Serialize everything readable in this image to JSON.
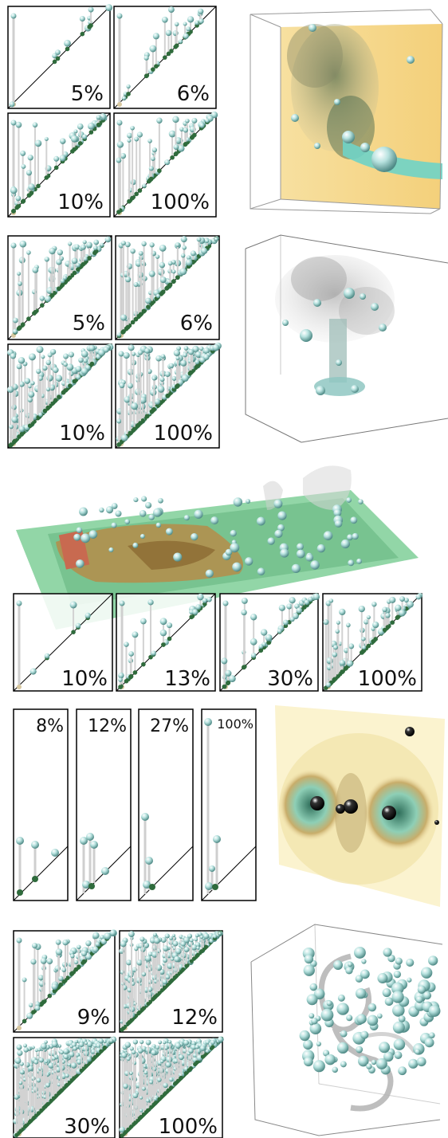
{
  "colors": {
    "sphere": "#a9d6d4",
    "sphere_dark": "#5f8f8c",
    "stem": "#d9d9d9",
    "base": "#2f6b3c",
    "yellow": "#f6dc92",
    "green_plane": "#7cc99a",
    "terrain": "#b08c4a"
  },
  "rows": [
    {
      "diagrams": [
        {
          "label": "5%"
        },
        {
          "label": "6%"
        },
        {
          "label": "10%"
        },
        {
          "label": "100%"
        }
      ],
      "render": {
        "icon": "smoke-plume-volume-render"
      }
    },
    {
      "diagrams": [
        {
          "label": "5%"
        },
        {
          "label": "6%"
        },
        {
          "label": "10%"
        },
        {
          "label": "100%"
        }
      ],
      "render": {
        "icon": "mushroom-cloud-volume-render"
      }
    },
    {
      "diagrams": [
        {
          "label": "10%"
        },
        {
          "label": "13%"
        },
        {
          "label": "30%"
        },
        {
          "label": "100%"
        }
      ],
      "render": {
        "icon": "terrain-flow-render"
      }
    },
    {
      "diagrams": [
        {
          "label": "8%"
        },
        {
          "label": "12%"
        },
        {
          "label": "27%"
        },
        {
          "label": "100%"
        }
      ],
      "render": {
        "icon": "orbital-field-render"
      }
    },
    {
      "diagrams": [
        {
          "label": "9%"
        },
        {
          "label": "12%"
        },
        {
          "label": "30%"
        },
        {
          "label": "100%"
        }
      ],
      "render": {
        "icon": "vortex-tube-render"
      }
    }
  ]
}
